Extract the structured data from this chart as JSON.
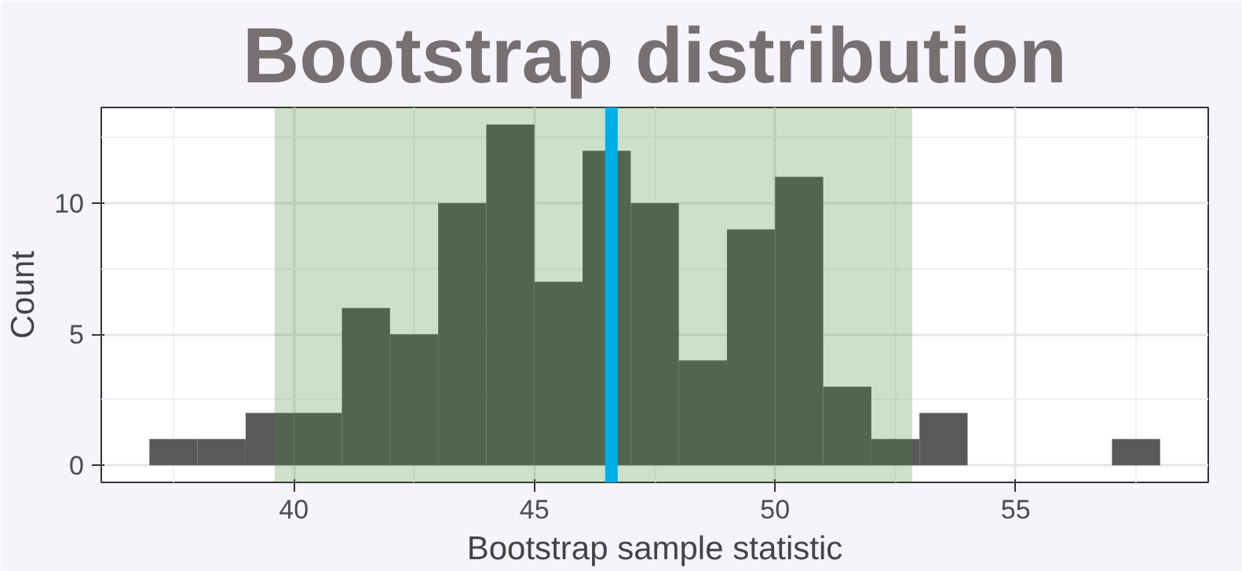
{
  "chart_data": {
    "type": "histogram",
    "title": "Bootstrap distribution",
    "xlabel": "Bootstrap sample statistic",
    "ylabel": "Count",
    "bins": [
      37,
      38,
      39,
      40,
      41,
      42,
      43,
      44,
      45,
      46,
      47,
      48,
      49,
      50,
      51,
      52,
      53,
      54,
      55,
      56,
      57,
      58
    ],
    "values": [
      1,
      1,
      2,
      2,
      6,
      5,
      10,
      13,
      7,
      12,
      10,
      4,
      9,
      11,
      3,
      1,
      2,
      0,
      0,
      0,
      1
    ],
    "color": "#595959",
    "xlim": [
      36.0,
      59.0
    ],
    "ylim": [
      -0.65,
      13.65
    ],
    "xticks": [
      40,
      45,
      50,
      55
    ],
    "yticks": [
      0,
      5,
      10
    ],
    "bands": [
      {
        "axis": "x",
        "from": 39.6,
        "to": 52.85,
        "color": "#3f882f"
      }
    ],
    "ref_lines": [
      {
        "axis": "x",
        "value": 46.6,
        "color": "#00aee8"
      }
    ],
    "grid": true
  }
}
